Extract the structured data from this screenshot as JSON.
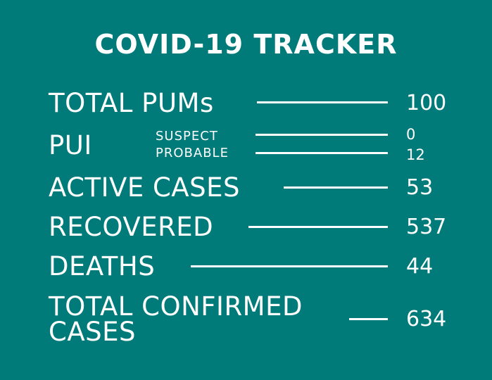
{
  "title": "COVID-19 TRACKER",
  "rows": {
    "total_pums": {
      "label": "TOTAL PUMs",
      "value": "100"
    },
    "pui": {
      "label": "PUI",
      "suspect": {
        "label": "SUSPECT",
        "value": "0"
      },
      "probable": {
        "label": "PROBABLE",
        "value": "12"
      }
    },
    "active_cases": {
      "label": "ACTIVE CASES",
      "value": "53"
    },
    "recovered": {
      "label": "RECOVERED",
      "value": "537"
    },
    "deaths": {
      "label": "DEATHS",
      "value": "44"
    },
    "total_confirmed": {
      "label_line1": "TOTAL CONFIRMED",
      "label_line2": "CASES",
      "value": "634"
    }
  },
  "colors": {
    "background": "#007b7a",
    "text": "#ffffff"
  }
}
